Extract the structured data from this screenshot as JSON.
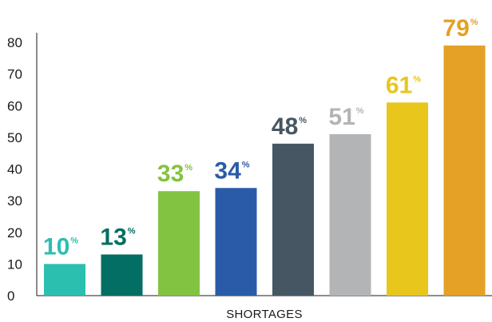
{
  "chart_data": {
    "type": "bar",
    "xlabel": "SHORTAGES",
    "ylabel": "",
    "ylim": [
      0,
      80
    ],
    "yticks": [
      0,
      10,
      20,
      30,
      40,
      50,
      60,
      70,
      80
    ],
    "grid": false,
    "legend": "none",
    "value_suffix": "%",
    "values": [
      10,
      13,
      33,
      34,
      48,
      51,
      61,
      79
    ],
    "colors": [
      "#2bbfb0",
      "#036e63",
      "#82c341",
      "#2a5ba8",
      "#465763",
      "#b3b4b6",
      "#e8c61c",
      "#e4a125"
    ]
  }
}
